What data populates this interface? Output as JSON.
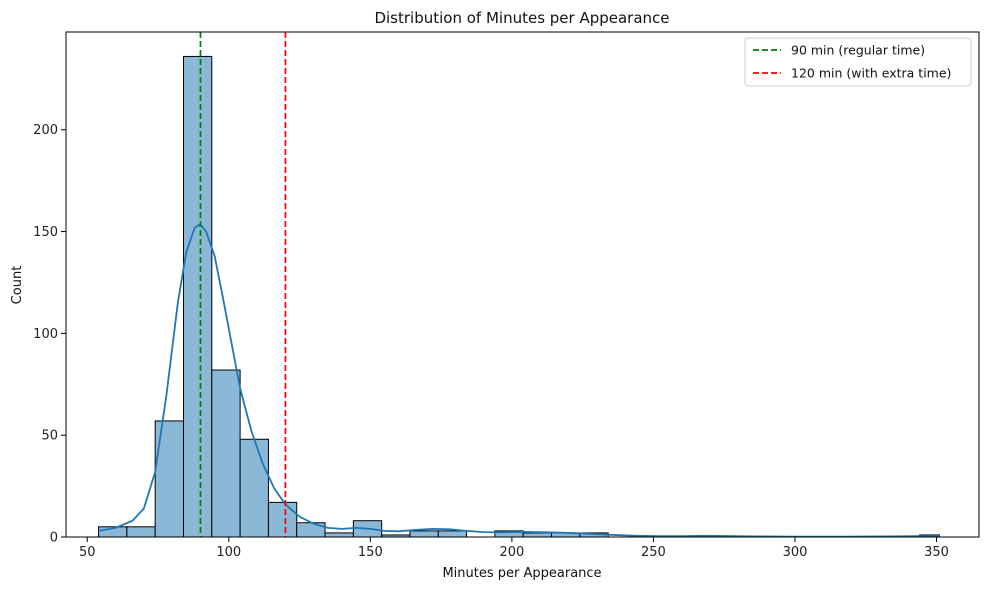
{
  "chart_data": {
    "type": "histogram",
    "title": "Distribution of Minutes per Appearance",
    "xlabel": "Minutes per Appearance",
    "ylabel": "Count",
    "xlim": [
      42.5,
      365
    ],
    "ylim": [
      0,
      248
    ],
    "xticks": [
      50,
      100,
      150,
      200,
      250,
      300,
      350
    ],
    "yticks": [
      0,
      50,
      100,
      150,
      200
    ],
    "bar_color": "#8cb8d8",
    "bar_edge_color": "#000000",
    "kde_color": "#1f77b4",
    "bins": [
      {
        "x0": 54,
        "x1": 64,
        "count": 5
      },
      {
        "x0": 64,
        "x1": 74,
        "count": 5
      },
      {
        "x0": 74,
        "x1": 84,
        "count": 57
      },
      {
        "x0": 84,
        "x1": 94,
        "count": 236
      },
      {
        "x0": 94,
        "x1": 104,
        "count": 82
      },
      {
        "x0": 104,
        "x1": 114,
        "count": 48
      },
      {
        "x0": 114,
        "x1": 124,
        "count": 17
      },
      {
        "x0": 124,
        "x1": 134,
        "count": 7
      },
      {
        "x0": 134,
        "x1": 144,
        "count": 2
      },
      {
        "x0": 144,
        "x1": 154,
        "count": 8
      },
      {
        "x0": 154,
        "x1": 164,
        "count": 1
      },
      {
        "x0": 164,
        "x1": 174,
        "count": 3
      },
      {
        "x0": 174,
        "x1": 184,
        "count": 3
      },
      {
        "x0": 184,
        "x1": 194,
        "count": 0
      },
      {
        "x0": 194,
        "x1": 204,
        "count": 3
      },
      {
        "x0": 204,
        "x1": 214,
        "count": 2
      },
      {
        "x0": 214,
        "x1": 224,
        "count": 2
      },
      {
        "x0": 224,
        "x1": 234,
        "count": 2
      },
      {
        "x0": 234,
        "x1": 244,
        "count": 0
      },
      {
        "x0": 244,
        "x1": 254,
        "count": 0
      },
      {
        "x0": 254,
        "x1": 264,
        "count": 0
      },
      {
        "x0": 264,
        "x1": 274,
        "count": 0
      },
      {
        "x0": 274,
        "x1": 284,
        "count": 0
      },
      {
        "x0": 284,
        "x1": 294,
        "count": 0
      },
      {
        "x0": 294,
        "x1": 304,
        "count": 0
      },
      {
        "x0": 304,
        "x1": 314,
        "count": 0
      },
      {
        "x0": 314,
        "x1": 324,
        "count": 0
      },
      {
        "x0": 324,
        "x1": 334,
        "count": 0
      },
      {
        "x0": 334,
        "x1": 344,
        "count": 0
      },
      {
        "x0": 344,
        "x1": 351,
        "count": 1
      }
    ],
    "kde": [
      [
        54,
        3
      ],
      [
        60,
        4.5
      ],
      [
        66,
        8
      ],
      [
        70,
        14
      ],
      [
        74,
        32
      ],
      [
        78,
        70
      ],
      [
        82,
        115
      ],
      [
        85,
        140
      ],
      [
        88,
        152
      ],
      [
        90,
        153.5
      ],
      [
        92,
        150
      ],
      [
        95,
        138
      ],
      [
        98,
        117
      ],
      [
        101,
        95
      ],
      [
        104,
        73
      ],
      [
        108,
        52
      ],
      [
        112,
        36
      ],
      [
        116,
        24
      ],
      [
        120,
        16
      ],
      [
        125,
        10
      ],
      [
        130,
        6.5
      ],
      [
        135,
        4.5
      ],
      [
        140,
        4
      ],
      [
        145,
        4.5
      ],
      [
        150,
        4
      ],
      [
        155,
        3
      ],
      [
        160,
        2.8
      ],
      [
        166,
        3.5
      ],
      [
        172,
        4
      ],
      [
        178,
        3.8
      ],
      [
        184,
        3
      ],
      [
        190,
        2.4
      ],
      [
        196,
        2.3
      ],
      [
        204,
        2.5
      ],
      [
        212,
        2.3
      ],
      [
        220,
        2
      ],
      [
        228,
        1.5
      ],
      [
        236,
        1
      ],
      [
        244,
        0.6
      ],
      [
        252,
        0.4
      ],
      [
        260,
        0.4
      ],
      [
        268,
        0.6
      ],
      [
        276,
        0.5
      ],
      [
        286,
        0.3
      ],
      [
        300,
        0.2
      ],
      [
        316,
        0.2
      ],
      [
        332,
        0.3
      ],
      [
        342,
        0.4
      ],
      [
        351,
        0.5
      ]
    ],
    "reference_lines": [
      {
        "x": 90,
        "label": "90 min (regular time)",
        "color": "#008000"
      },
      {
        "x": 120,
        "label": "120 min (with extra time)",
        "color": "#ff0000"
      }
    ],
    "legend_position": "top-right",
    "grid": false
  }
}
